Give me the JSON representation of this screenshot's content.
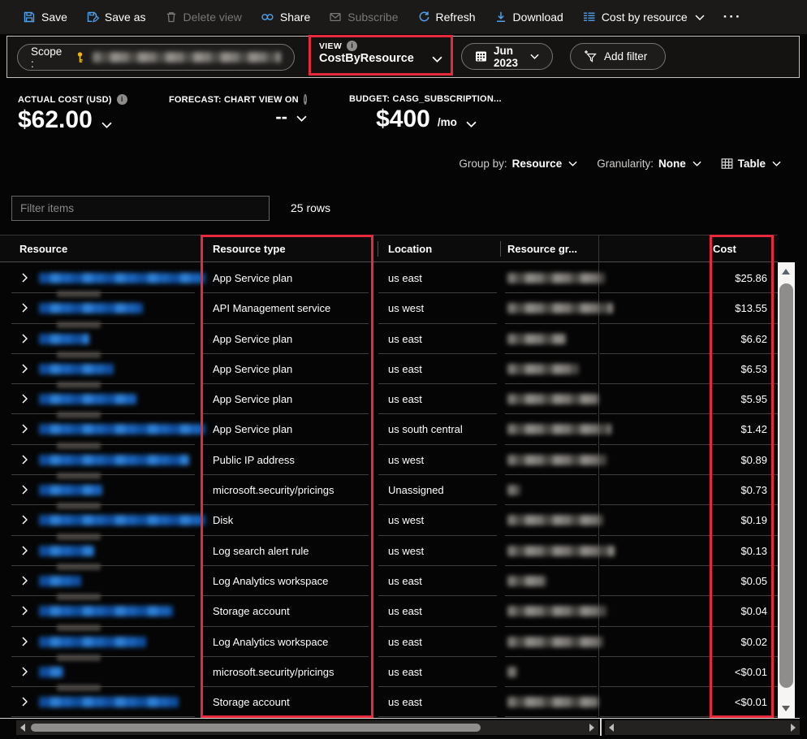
{
  "toolbar": {
    "items": [
      {
        "label": "Save",
        "icon": "save-icon",
        "disabled": false
      },
      {
        "label": "Save as",
        "icon": "save-as-icon",
        "disabled": false
      },
      {
        "label": "Delete view",
        "icon": "delete-icon",
        "disabled": true
      },
      {
        "label": "Share",
        "icon": "share-icon",
        "disabled": false
      },
      {
        "label": "Subscribe",
        "icon": "mail-icon",
        "disabled": true
      },
      {
        "label": "Refresh",
        "icon": "refresh-icon",
        "disabled": false
      },
      {
        "label": "Download",
        "icon": "download-icon",
        "disabled": false
      },
      {
        "label": "Cost by resource",
        "icon": "view-list-icon",
        "disabled": false
      }
    ],
    "more_label": "···"
  },
  "scope_bar": {
    "scope_label": "Scope :",
    "view_label": "VIEW",
    "view_value": "CostByResource",
    "date_range": "Jun 2023",
    "add_filter_label": "Add filter"
  },
  "kpis": {
    "actual_cost_label": "ACTUAL COST (USD)",
    "actual_cost_value": "$62.00",
    "forecast_label": "FORECAST: CHART VIEW ON",
    "forecast_value": "--",
    "budget_label": "BUDGET: CASG_SUBSCRIPTION...",
    "budget_value": "$400",
    "budget_unit": "/mo"
  },
  "controls": {
    "group_by_label": "Group by:",
    "group_by_value": "Resource",
    "granularity_label": "Granularity:",
    "granularity_value": "None",
    "view_mode_value": "Table"
  },
  "filter": {
    "placeholder": "Filter items",
    "row_count": "25 rows"
  },
  "table": {
    "columns": [
      "Resource",
      "Resource type",
      "Location",
      "Resource gr...",
      "Cost"
    ],
    "rows": [
      {
        "type": "App Service plan",
        "location": "us east",
        "cost": "$25.86",
        "name_w": 205,
        "group_w": 120
      },
      {
        "type": "API Management service",
        "location": "us west",
        "cost": "$13.55",
        "name_w": 128,
        "group_w": 130
      },
      {
        "type": "App Service plan",
        "location": "us east",
        "cost": "$6.62",
        "name_w": 62,
        "group_w": 72
      },
      {
        "type": "App Service plan",
        "location": "us east",
        "cost": "$6.53",
        "name_w": 92,
        "group_w": 88
      },
      {
        "type": "App Service plan",
        "location": "us east",
        "cost": "$5.95",
        "name_w": 120,
        "group_w": 112
      },
      {
        "type": "App Service plan",
        "location": "us south central",
        "cost": "$1.42",
        "name_w": 205,
        "group_w": 128
      },
      {
        "type": "Public IP address",
        "location": "us west",
        "cost": "$0.89",
        "name_w": 185,
        "group_w": 122
      },
      {
        "type": "microsoft.security/pricings",
        "location": "Unassigned",
        "cost": "$0.73",
        "name_w": 78,
        "group_w": 16
      },
      {
        "type": "Disk",
        "location": "us west",
        "cost": "$0.19",
        "name_w": 205,
        "group_w": 118
      },
      {
        "type": "Log search alert rule",
        "location": "us west",
        "cost": "$0.13",
        "name_w": 68,
        "group_w": 132
      },
      {
        "type": "Log Analytics workspace",
        "location": "us east",
        "cost": "$0.05",
        "name_w": 52,
        "group_w": 48
      },
      {
        "type": "Storage account",
        "location": "us east",
        "cost": "$0.04",
        "name_w": 165,
        "group_w": 122
      },
      {
        "type": "Log Analytics workspace",
        "location": "us east",
        "cost": "$0.02",
        "name_w": 132,
        "group_w": 118
      },
      {
        "type": "microsoft.security/pricings",
        "location": "us east",
        "cost": "<$0.01",
        "name_w": 30,
        "group_w": 12
      },
      {
        "type": "Storage account",
        "location": "us east",
        "cost": "<$0.01",
        "name_w": 172,
        "group_w": 112
      }
    ]
  },
  "colors": {
    "accent_blue": "#4da2f0",
    "highlight_red": "#e7293d",
    "key_gold": "#e9b60a"
  }
}
